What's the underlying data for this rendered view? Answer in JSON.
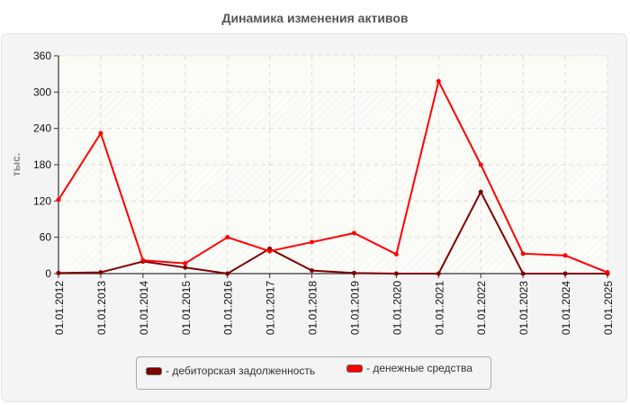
{
  "chart_data": {
    "type": "line",
    "title": "Динамика изменения активов",
    "xlabel": "",
    "ylabel": "тыс.",
    "ylim": [
      0,
      360
    ],
    "yticks": [
      0,
      60,
      120,
      180,
      240,
      300,
      360
    ],
    "categories": [
      "01.01.2012",
      "01.01.2013",
      "01.01.2014",
      "01.01.2015",
      "01.01.2016",
      "01.01.2017",
      "01.01.2018",
      "01.01.2019",
      "01.01.2020",
      "01.01.2021",
      "01.01.2022",
      "01.01.2023",
      "01.01.2024",
      "01.01.2025"
    ],
    "series": [
      {
        "name": "дебиторская задолженность",
        "color": "#800000",
        "values": [
          1,
          2,
          20,
          10,
          0,
          41,
          5,
          1,
          0,
          0,
          135,
          0,
          0,
          0
        ]
      },
      {
        "name": "денежные средства",
        "color": "#ff0000",
        "values": [
          122,
          232,
          22,
          17,
          60,
          37,
          52,
          67,
          32,
          318,
          180,
          33,
          30,
          2
        ]
      }
    ],
    "grid": true,
    "legend_position": "bottom"
  },
  "legend": {
    "items": [
      {
        "label": "- дебиторская задолженность",
        "color": "#800000"
      },
      {
        "label": "- денежные средства",
        "color": "#ff0000"
      }
    ]
  }
}
